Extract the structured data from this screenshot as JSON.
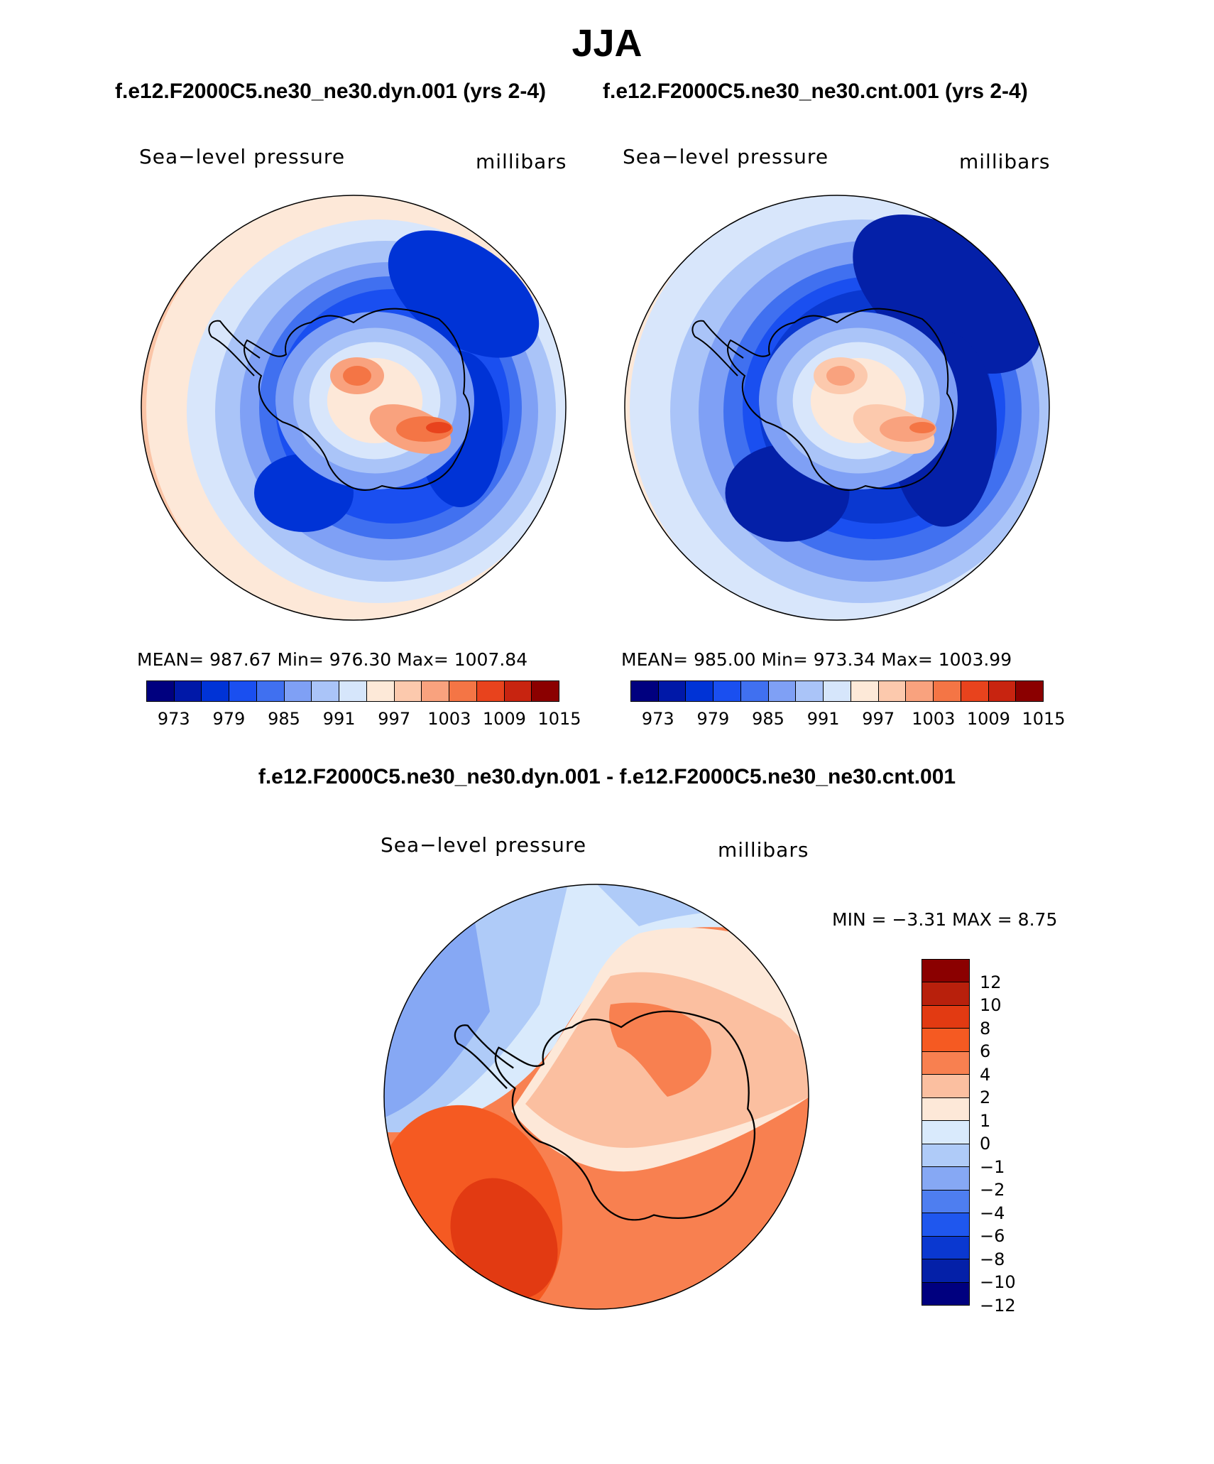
{
  "title": "JJA",
  "case_titles": {
    "left": "f.e12.F2000C5.ne30_ne30.dyn.001 (yrs 2-4)",
    "right": "f.e12.F2000C5.ne30_ne30.cnt.001 (yrs 2-4)"
  },
  "diff_title": "f.e12.F2000C5.ne30_ne30.dyn.001 - f.e12.F2000C5.ne30_ne30.cnt.001",
  "panels": [
    {
      "variable": "Sea−level pressure",
      "units": "millibars",
      "stats": "MEAN=  987.67    Min=  976.30    Max=  1007.84"
    },
    {
      "variable": "Sea−level pressure",
      "units": "millibars",
      "stats": "MEAN=  985.00    Min=  973.34    Max=  1003.99"
    },
    {
      "variable": "Sea−level pressure",
      "units": "millibars",
      "stats": "MIN  =    −3.31  MAX  =     8.75"
    }
  ],
  "abs_colorbar": {
    "colors": [
      "#00007f",
      "#0018a8",
      "#0033d6",
      "#1a4ff0",
      "#4070f0",
      "#7fa0f5",
      "#aac4f8",
      "#d6e6fb",
      "#fde9d8",
      "#fcc9ad",
      "#f9a27e",
      "#f47545",
      "#e8431d",
      "#c82410",
      "#8b0000"
    ],
    "labels": [
      "973",
      "979",
      "985",
      "991",
      "997",
      "1003",
      "1009",
      "1015"
    ]
  },
  "diff_colorbar": {
    "colors": [
      "#8b0000",
      "#b8200c",
      "#e23a12",
      "#f55a22",
      "#f88050",
      "#fbbfa0",
      "#fde8d8",
      "#d9eafc",
      "#afcbf8",
      "#86a8f4",
      "#4e7ef0",
      "#1f57ee",
      "#0a38d0",
      "#0420a8",
      "#00007f"
    ],
    "labels": [
      "12",
      "10",
      "8",
      "6",
      "4",
      "2",
      "1",
      "0",
      "−1",
      "−2",
      "−4",
      "−6",
      "−8",
      "−10",
      "−12"
    ]
  },
  "map_fields": {
    "dyn": {
      "ocean": [
        "#fbc4a6",
        "#fde8d8",
        "#d8e6fb",
        "#aac4f8",
        "#7fa0f5",
        "#4070f0",
        "#1a4ff0"
      ],
      "low": "#0033d6",
      "ice": [
        "#7fa0f5",
        "#aac4f8",
        "#d8e6fb",
        "#fde8d8"
      ],
      "highs": [
        "#f9a27e",
        "#f47545",
        "#e8431d"
      ]
    },
    "cnt": {
      "ocean": [
        "#fde8d8",
        "#d8e6fb",
        "#aac4f8",
        "#7fa0f5",
        "#4070f0",
        "#1a4ff0",
        "#0a38d0"
      ],
      "low": "#0420a8",
      "ice": [
        "#7fa0f5",
        "#aac4f8",
        "#d8e6fb",
        "#fde8d8"
      ],
      "highs": [
        "#fcc9ad",
        "#f9a27e",
        "#f47545"
      ]
    },
    "diff": {
      "west": [
        "#86a8f4",
        "#afcbf8",
        "#d9eafc"
      ],
      "east": [
        "#fde8d8",
        "#fbbfa0",
        "#f88050",
        "#f55a22",
        "#e23a12"
      ]
    }
  }
}
